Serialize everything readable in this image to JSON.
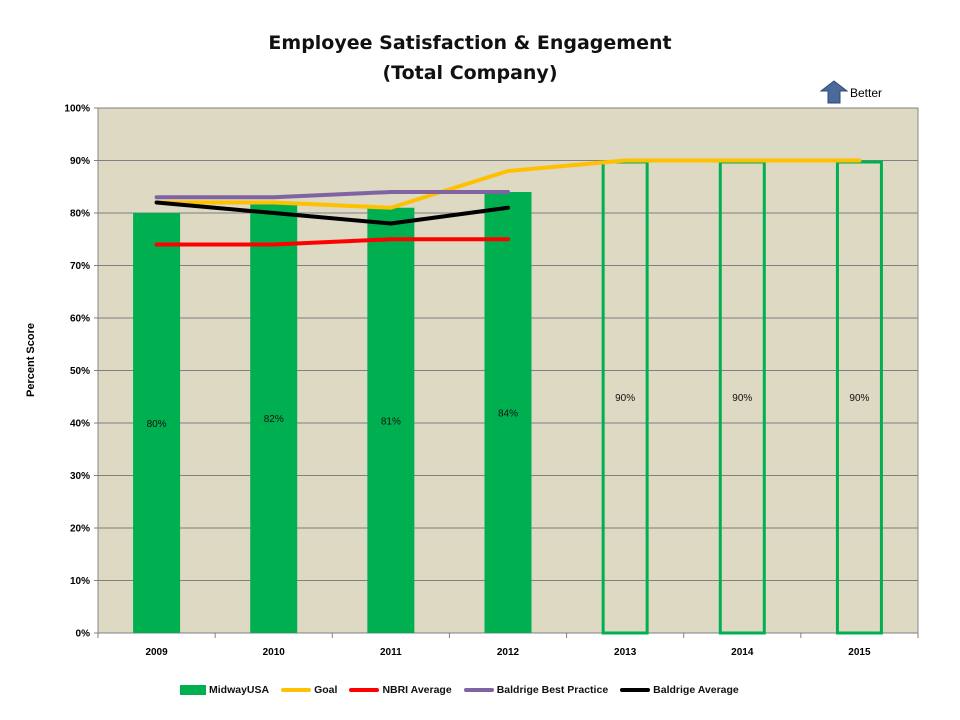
{
  "chart_data": {
    "type": "bar",
    "title_line1": "Employee Satisfaction & Engagement",
    "title_line2": "(Total Company)",
    "ylabel": "Percent Score",
    "xlabel": "",
    "categories": [
      "2009",
      "2010",
      "2011",
      "2012",
      "2013",
      "2014",
      "2015"
    ],
    "ylim": [
      0,
      100
    ],
    "yticks": [
      "0%",
      "10%",
      "20%",
      "30%",
      "40%",
      "50%",
      "60%",
      "70%",
      "80%",
      "90%",
      "100%"
    ],
    "grid": true,
    "legend_position": "bottom",
    "annotation": "Better",
    "bars": {
      "name": "MidwayUSA",
      "color": "#00b050",
      "values": [
        80,
        82,
        81,
        84,
        90,
        90,
        90
      ],
      "labels": [
        "80%",
        "82%",
        "81%",
        "84%",
        "90%",
        "90%",
        "90%"
      ],
      "filled": [
        true,
        true,
        true,
        true,
        false,
        false,
        false
      ]
    },
    "series": [
      {
        "name": "Goal",
        "color": "#ffc000",
        "values": [
          82,
          82,
          81,
          88,
          90,
          90,
          90
        ]
      },
      {
        "name": "NBRI Average",
        "color": "#ff0000",
        "values": [
          74,
          74,
          75,
          75,
          null,
          null,
          null
        ]
      },
      {
        "name": "Baldrige Best Practice",
        "color": "#8064a2",
        "values": [
          83,
          83,
          84,
          84,
          null,
          null,
          null
        ]
      },
      {
        "name": "Baldrige Average",
        "color": "#000000",
        "values": [
          82,
          80,
          78,
          81,
          null,
          null,
          null
        ]
      }
    ],
    "plot_background": "#ddd9c3"
  }
}
